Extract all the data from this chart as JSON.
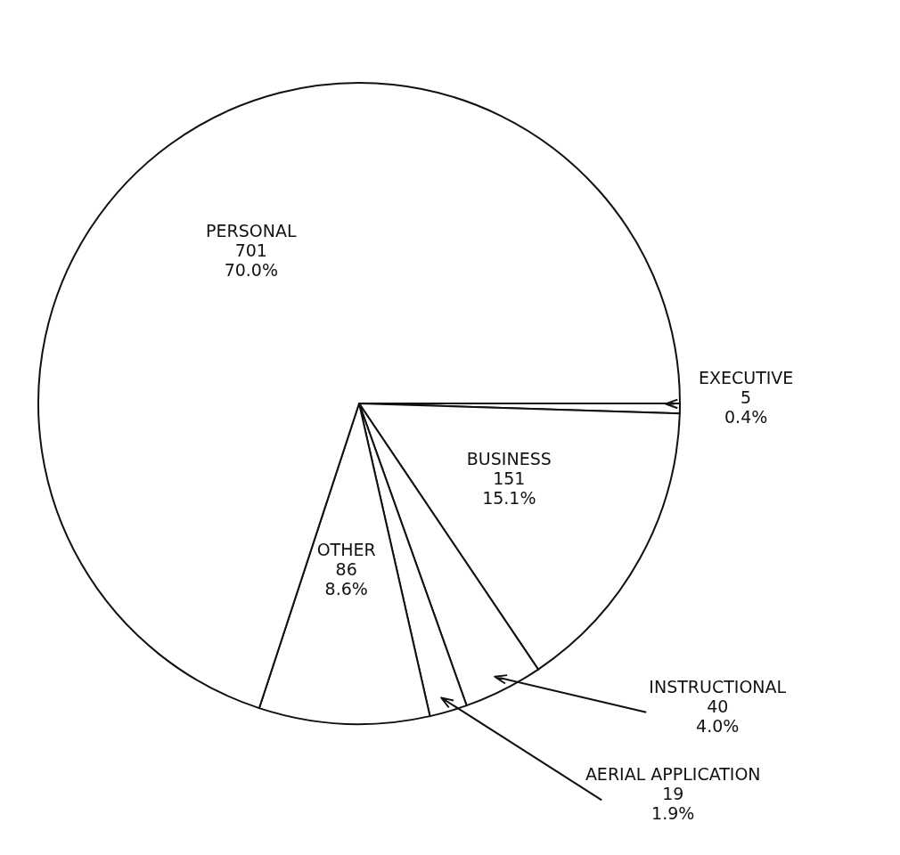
{
  "chart_data": {
    "type": "pie",
    "categories": [
      "EXECUTIVE",
      "BUSINESS",
      "INSTRUCTIONAL",
      "AERIAL APPLICATION",
      "OTHER",
      "PERSONAL"
    ],
    "values": [
      5,
      151,
      40,
      19,
      86,
      701
    ],
    "value_labels": [
      "5\n0.4%",
      "151\n15.1%",
      "40\n4.0%",
      "19\n1.9%",
      "86\n8.6%",
      "701\n70.0%"
    ],
    "colors": [
      "#ffffff",
      "#ffffff",
      "#ffffff",
      "#ffffff",
      "#ffffff",
      "#ffffff"
    ],
    "legend": false
  }
}
